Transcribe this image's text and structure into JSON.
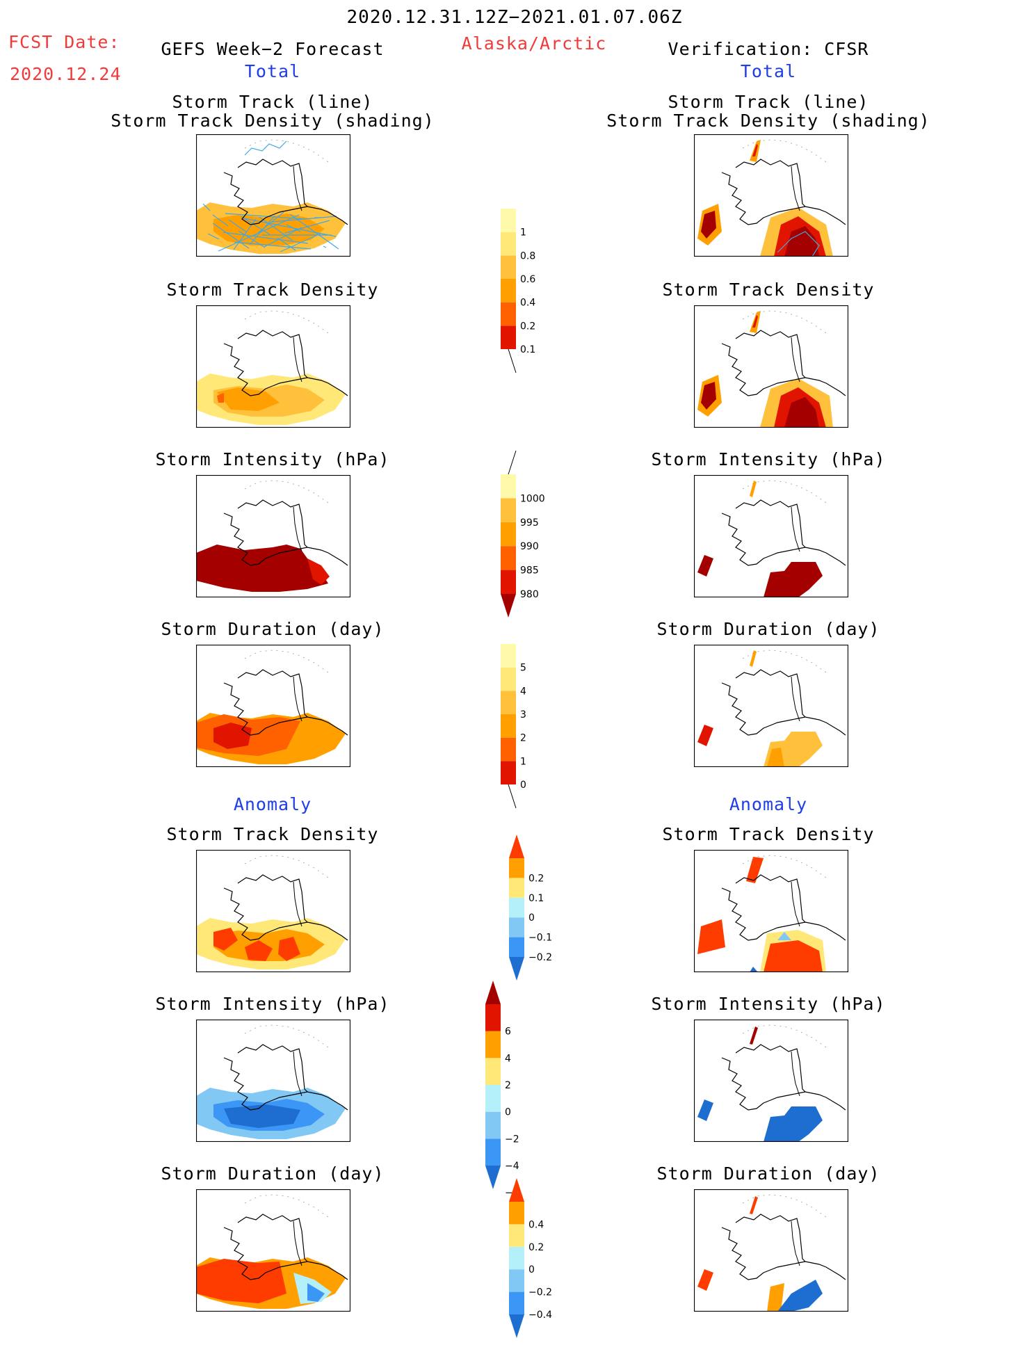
{
  "header": {
    "date_range": "2020.12.31.12Z−2021.01.07.06Z",
    "fcst_label": "FCST Date:",
    "fcst_date": "2020.12.24",
    "left_title": "GEFS Week−2 Forecast",
    "region": "Alaska/Arctic",
    "right_title": "Verification: CFSR",
    "left_section_total": "Total",
    "right_section_total": "Total",
    "left_section_anomaly": "Anomaly",
    "right_section_anomaly": "Anomaly"
  },
  "colors": {
    "title_red": "#f23a3a",
    "section_blue": "#1f3de8",
    "track_line": "#3fa8e8"
  },
  "panels": {
    "forecast": [
      {
        "title_lines": [
          "Storm Track (line)",
          "Storm Track Density (shading)"
        ],
        "field": "track_density_with_tracks"
      },
      {
        "title_lines": [
          "Storm Track Density"
        ],
        "field": "track_density"
      },
      {
        "title_lines": [
          "Storm Intensity (hPa)"
        ],
        "field": "intensity"
      },
      {
        "title_lines": [
          "Storm Duration (day)"
        ],
        "field": "duration"
      },
      {
        "title_lines": [
          "Storm Track Density"
        ],
        "field": "track_density_anomaly"
      },
      {
        "title_lines": [
          "Storm Intensity (hPa)"
        ],
        "field": "intensity_anomaly"
      },
      {
        "title_lines": [
          "Storm Duration (day)"
        ],
        "field": "duration_anomaly"
      }
    ],
    "verification": [
      {
        "title_lines": [
          "Storm Track (line)",
          "Storm Track Density (shading)"
        ],
        "field": "track_density_with_tracks"
      },
      {
        "title_lines": [
          "Storm Track Density"
        ],
        "field": "track_density"
      },
      {
        "title_lines": [
          "Storm Intensity (hPa)"
        ],
        "field": "intensity"
      },
      {
        "title_lines": [
          "Storm Duration (day)"
        ],
        "field": "duration"
      },
      {
        "title_lines": [
          "Storm Track Density"
        ],
        "field": "track_density_anomaly"
      },
      {
        "title_lines": [
          "Storm Intensity (hPa)"
        ],
        "field": "intensity_anomaly"
      },
      {
        "title_lines": [
          "Storm Duration (day)"
        ],
        "field": "duration_anomaly"
      }
    ]
  },
  "chart_data": [
    {
      "type": "heatmap",
      "name": "track_density_scale",
      "ticks": [
        "1",
        "0.8",
        "0.6",
        "0.4",
        "0.2",
        "0.1"
      ],
      "levels": [
        0.1,
        0.2,
        0.4,
        0.6,
        0.8,
        1
      ],
      "colors": [
        "#ffffff",
        "#fffaaa",
        "#ffe878",
        "#ffc03c",
        "#ffa000",
        "#ff6000",
        "#e11400",
        "#a50000"
      ]
    },
    {
      "type": "heatmap",
      "name": "intensity_scale_hPa",
      "ticks": [
        "1000",
        "995",
        "990",
        "985",
        "980"
      ],
      "levels": [
        1000,
        995,
        990,
        985,
        980
      ],
      "colors": [
        "#ffffff",
        "#fffaaa",
        "#ffc03c",
        "#ffa000",
        "#ff6000",
        "#e11400",
        "#a50000"
      ]
    },
    {
      "type": "heatmap",
      "name": "duration_scale_day",
      "ticks": [
        "5",
        "4",
        "3",
        "2",
        "1",
        "0"
      ],
      "levels": [
        0,
        1,
        2,
        3,
        4,
        5
      ],
      "colors": [
        "#ffffff",
        "#fffaaa",
        "#ffe878",
        "#ffc03c",
        "#ffa000",
        "#ff6000",
        "#e11400",
        "#a50000"
      ]
    },
    {
      "type": "heatmap",
      "name": "track_density_anomaly_scale",
      "ticks": [
        "0.2",
        "0.1",
        "0",
        "−0.1",
        "−0.2"
      ],
      "levels": [
        0.2,
        0.1,
        0,
        -0.1,
        -0.2
      ],
      "colors": [
        "#ff3c00",
        "#ffa000",
        "#ffe878",
        "#b4f0fa",
        "#82c8f5",
        "#3c96f5",
        "#1e6ed2"
      ]
    },
    {
      "type": "heatmap",
      "name": "intensity_anomaly_scale_hPa",
      "ticks": [
        "6",
        "4",
        "2",
        "0",
        "−2",
        "−4",
        "−6"
      ],
      "levels": [
        6,
        4,
        2,
        0,
        -2,
        -4,
        -6
      ],
      "colors": [
        "#a50000",
        "#e11400",
        "#ffa000",
        "#ffe878",
        "#b4f0fa",
        "#82c8f5",
        "#3c96f5",
        "#1e6ed2"
      ]
    },
    {
      "type": "heatmap",
      "name": "duration_anomaly_scale_day",
      "ticks": [
        "0.4",
        "0.2",
        "0",
        "−0.2",
        "−0.4"
      ],
      "levels": [
        0.4,
        0.2,
        0,
        -0.2,
        -0.4
      ],
      "colors": [
        "#ff3c00",
        "#ffa000",
        "#ffe878",
        "#b4f0fa",
        "#82c8f5",
        "#3c96f5",
        "#1e6ed2"
      ]
    }
  ]
}
